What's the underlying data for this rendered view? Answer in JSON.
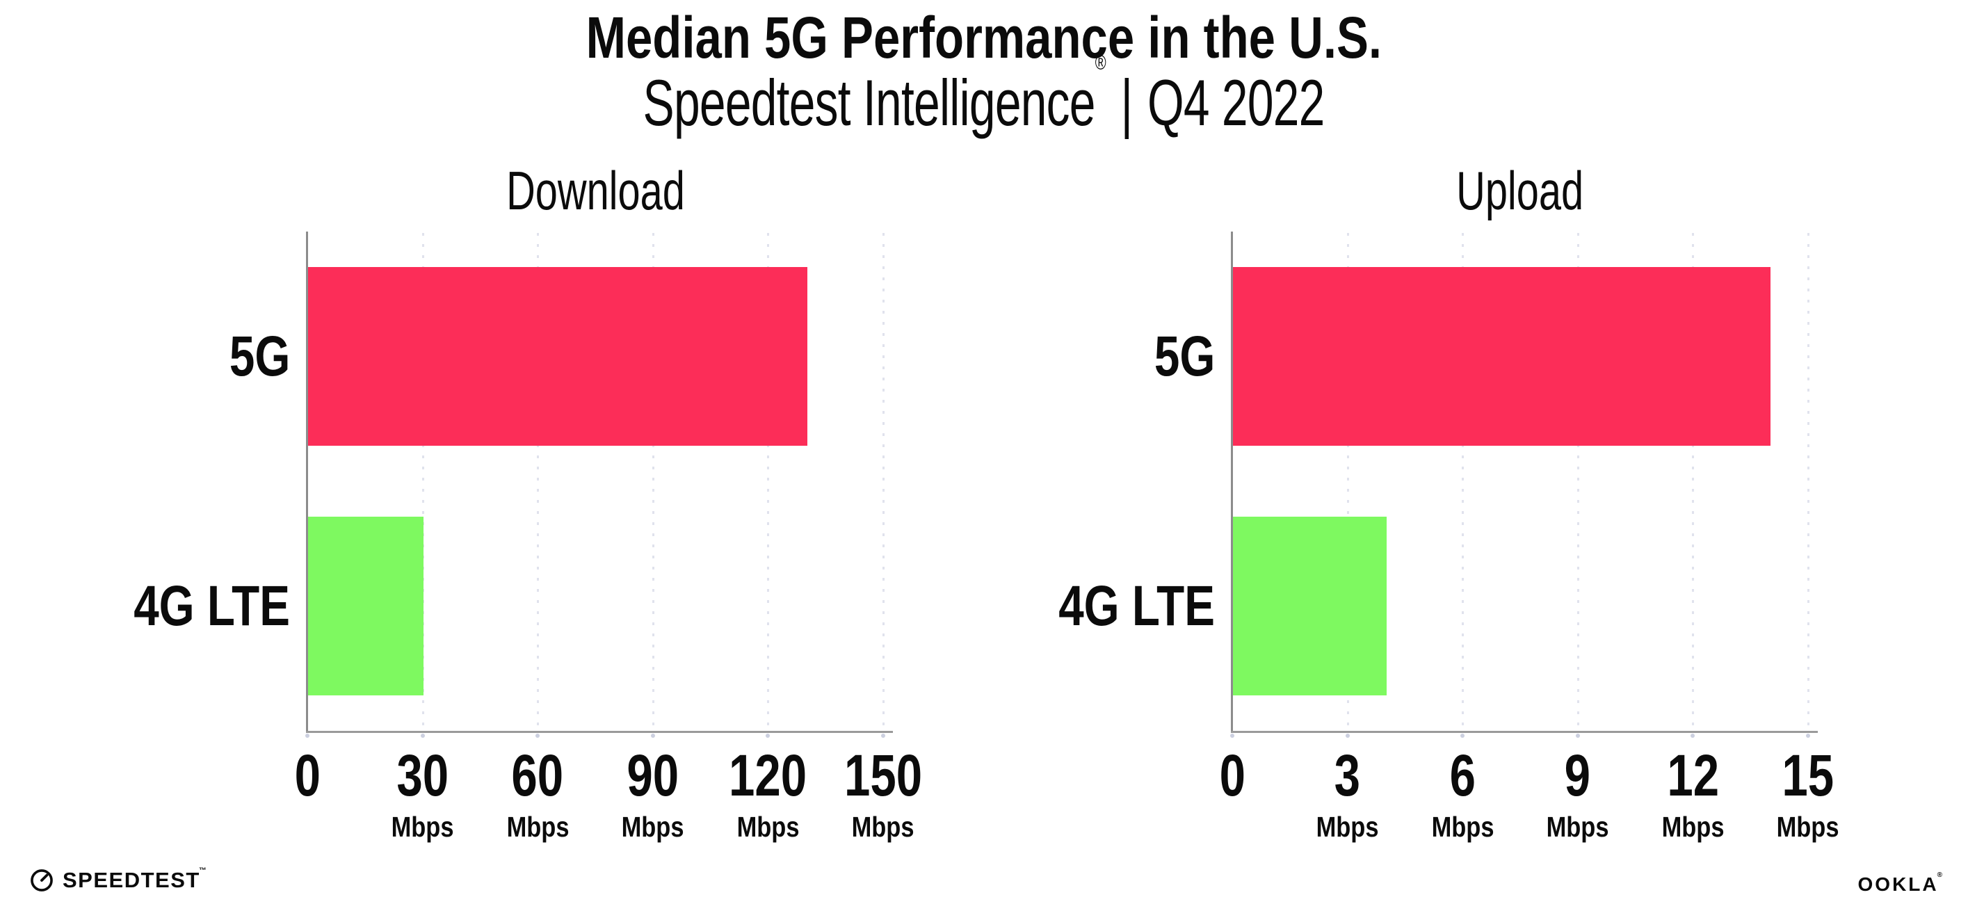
{
  "header": {
    "title": "Median 5G Performance in the U.S.",
    "subtitle_brand": "Speedtest Intelligence",
    "subtitle_reg": "®",
    "subtitle_separator": "|",
    "subtitle_period": "Q4 2022"
  },
  "colors": {
    "bar_5g": "#FC2D58",
    "bar_4g_lte": "#7EF960",
    "axis": "#9A9A9A",
    "gridline": "#E0E2ED",
    "text": "#0B0B0B",
    "background": "#FFFFFF"
  },
  "chart_data": [
    {
      "type": "bar",
      "orientation": "horizontal",
      "title": "Download",
      "categories": [
        "5G",
        "4G LTE"
      ],
      "values": [
        130,
        30
      ],
      "unit": "Mbps",
      "xlim": [
        0,
        150
      ],
      "xticks": [
        0,
        30,
        60,
        90,
        120,
        150
      ],
      "tick_unit_label": "Mbps",
      "bar_colors": [
        "#FC2D58",
        "#7EF960"
      ],
      "grid": "vertical-dotted",
      "legend": "none"
    },
    {
      "type": "bar",
      "orientation": "horizontal",
      "title": "Upload",
      "categories": [
        "5G",
        "4G LTE"
      ],
      "values": [
        14,
        4
      ],
      "unit": "Mbps",
      "xlim": [
        0,
        15
      ],
      "xticks": [
        0,
        3,
        6,
        9,
        12,
        15
      ],
      "tick_unit_label": "Mbps",
      "bar_colors": [
        "#FC2D58",
        "#7EF960"
      ],
      "grid": "vertical-dotted",
      "legend": "none"
    }
  ],
  "footer": {
    "speedtest_text": "SPEEDTEST",
    "speedtest_mark": "™",
    "speedtest_icon": "speedtest-gauge-icon",
    "ookla_text": "OOKLA",
    "ookla_mark": "®"
  }
}
